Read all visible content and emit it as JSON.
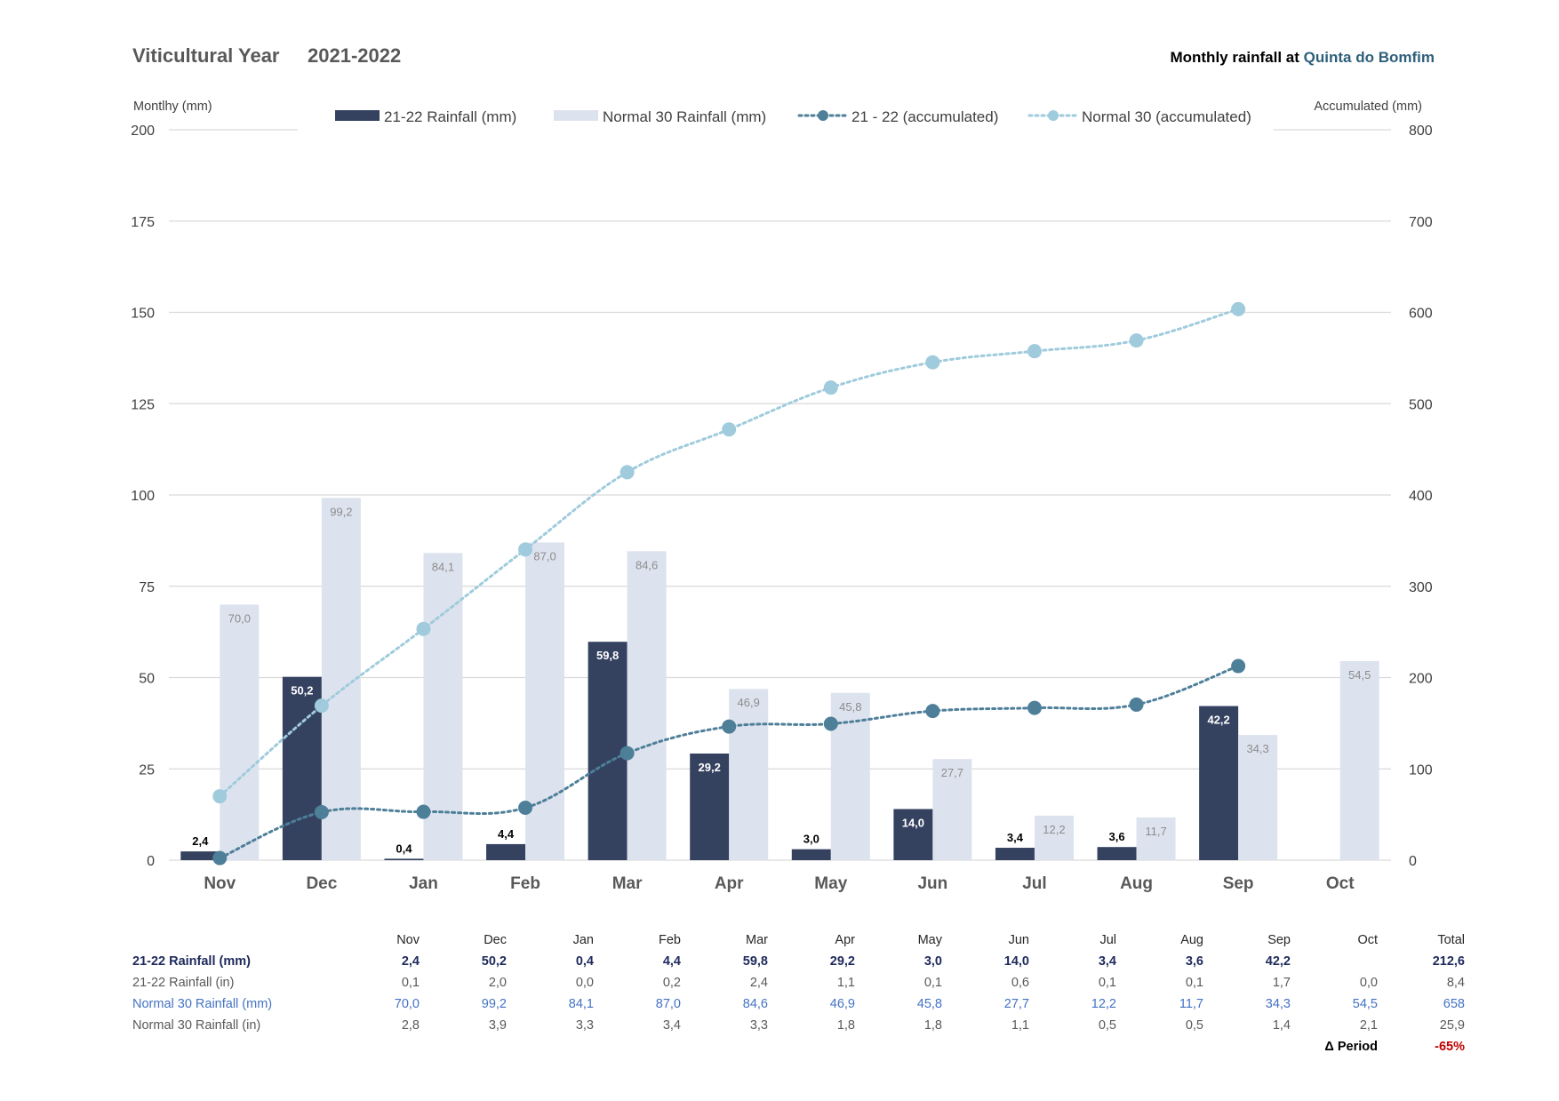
{
  "header": {
    "title": "Viticultural Year",
    "year": "2021-2022",
    "right_prefix": "Monthly rainfall at",
    "right_place": "Quinta do Bomfim"
  },
  "chart_data": {
    "type": "bar",
    "categories": [
      "Nov",
      "Dec",
      "Jan",
      "Feb",
      "Mar",
      "Apr",
      "May",
      "Jun",
      "Jul",
      "Aug",
      "Sep",
      "Oct"
    ],
    "y_left_label": "Montlhy (mm)",
    "y_right_label": "Accumulated (mm)",
    "ylim_left": [
      0,
      200
    ],
    "ylim_right": [
      0,
      800
    ],
    "left_ticks": [
      0,
      25,
      50,
      75,
      100,
      125,
      150,
      175,
      200
    ],
    "right_ticks": [
      0,
      100,
      200,
      300,
      400,
      500,
      600,
      700,
      800
    ],
    "grid": true,
    "legend_position": "top",
    "series": [
      {
        "name": "21-22  Rainfall (mm)",
        "kind": "bar",
        "axis": "left",
        "color": "#344260",
        "values": [
          2.4,
          50.2,
          0.4,
          4.4,
          59.8,
          29.2,
          3.0,
          14.0,
          3.4,
          3.6,
          42.2,
          null
        ],
        "labels": [
          "2,4",
          "50,2",
          "0,4",
          "4,4",
          "59,8",
          "29,2",
          "3,0",
          "14,0",
          "3,4",
          "3,6",
          "42,2",
          ""
        ]
      },
      {
        "name": "Normal 30 Rainfall (mm)",
        "kind": "bar",
        "axis": "left",
        "color": "#dde3ee",
        "values": [
          70.0,
          99.2,
          84.1,
          87.0,
          84.6,
          46.9,
          45.8,
          27.7,
          12.2,
          11.7,
          34.3,
          54.5
        ],
        "labels": [
          "70,0",
          "99,2",
          "84,1",
          "87,0",
          "84,6",
          "46,9",
          "45,8",
          "27,7",
          "12,2",
          "11,7",
          "34,3",
          "54,5"
        ]
      },
      {
        "name": "21 - 22 (accumulated)",
        "kind": "line",
        "axis": "right",
        "color": "#4e7f99",
        "values": [
          2.4,
          52.6,
          53.0,
          57.4,
          117.2,
          146.4,
          149.4,
          163.4,
          166.8,
          170.4,
          212.6,
          null
        ]
      },
      {
        "name": "Normal 30 (accumulated)",
        "kind": "line",
        "axis": "right",
        "color": "#9fcbdc",
        "values": [
          70.0,
          169.2,
          253.3,
          340.3,
          424.9,
          471.8,
          517.6,
          545.3,
          557.5,
          569.2,
          603.5,
          null
        ]
      }
    ]
  },
  "table": {
    "headers": [
      "Nov",
      "Dec",
      "Jan",
      "Feb",
      "Mar",
      "Apr",
      "May",
      "Jun",
      "Jul",
      "Aug",
      "Sep",
      "Oct",
      "Total"
    ],
    "rows": [
      {
        "label": "21-22  Rainfall (mm)",
        "values": [
          "2,4",
          "50,2",
          "0,4",
          "4,4",
          "59,8",
          "29,2",
          "3,0",
          "14,0",
          "3,4",
          "3,6",
          "42,2",
          "",
          "212,6"
        ]
      },
      {
        "label": "21-22  Rainfall (in)",
        "values": [
          "0,1",
          "2,0",
          "0,0",
          "0,2",
          "2,4",
          "1,1",
          "0,1",
          "0,6",
          "0,1",
          "0,1",
          "1,7",
          "0,0",
          "8,4"
        ]
      },
      {
        "label": "Normal 30 Rainfall (mm)",
        "values": [
          "70,0",
          "99,2",
          "84,1",
          "87,0",
          "84,6",
          "46,9",
          "45,8",
          "27,7",
          "12,2",
          "11,7",
          "34,3",
          "54,5",
          "658"
        ]
      },
      {
        "label": "Normal 30 Rainfall (in)",
        "values": [
          "2,8",
          "3,9",
          "3,3",
          "3,4",
          "3,3",
          "1,8",
          "1,8",
          "1,1",
          "0,5",
          "0,5",
          "1,4",
          "2,1",
          "25,9"
        ]
      }
    ],
    "delta_label": "Δ Period",
    "delta_value": "-65%"
  }
}
